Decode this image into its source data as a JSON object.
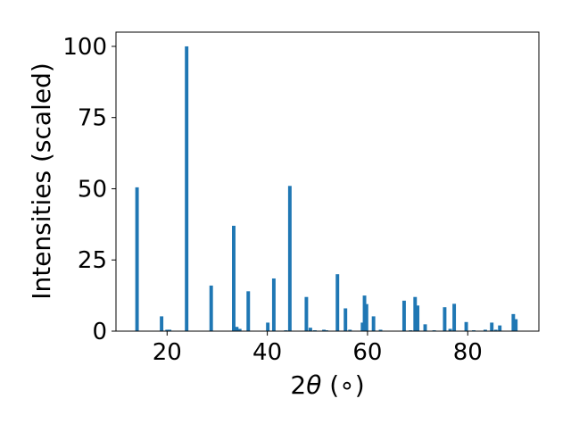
{
  "chart_data": {
    "type": "bar",
    "xlabel_prefix": "2",
    "xlabel_symbol": "θ",
    "xlabel_unit": " (∘)",
    "ylabel": "Intensities (scaled)",
    "xlim": [
      9.8,
      94.2
    ],
    "ylim": [
      0,
      105
    ],
    "xticks": [
      20,
      40,
      60,
      80
    ],
    "yticks": [
      0,
      25,
      50,
      75,
      100
    ],
    "grid": false,
    "bar_color": "#1f77b4",
    "bar_width_deg": 0.7,
    "series": [
      {
        "x": [
          14.0,
          18.9,
          20.0,
          20.5,
          23.9,
          28.8,
          33.3,
          33.9,
          34.5,
          36.2,
          40.1,
          41.3,
          43.7,
          44.5,
          47.8,
          48.6,
          49.5,
          51.3,
          51.8,
          54.0,
          55.6,
          56.5,
          59.0,
          59.4,
          59.8,
          61.2,
          62.6,
          67.3,
          68.6,
          69.5,
          70.0,
          71.5,
          73.3,
          75.4,
          76.5,
          77.3,
          79.7,
          81.2,
          83.5,
          84.8,
          85.6,
          86.4,
          89.1,
          89.6
        ],
        "values": [
          50.5,
          5.2,
          0.5,
          0.5,
          100,
          16,
          37,
          1.5,
          0.8,
          14,
          3,
          18.5,
          0.3,
          51,
          12,
          1.2,
          0.3,
          0.5,
          0.3,
          20,
          8,
          0.5,
          3,
          12.5,
          9.5,
          5.2,
          0.5,
          10.7,
          0.3,
          12,
          9,
          2.4,
          0.3,
          8.4,
          0.8,
          9.6,
          3.2,
          0.3,
          0.5,
          3,
          0.5,
          2,
          6,
          4.2
        ]
      }
    ]
  }
}
